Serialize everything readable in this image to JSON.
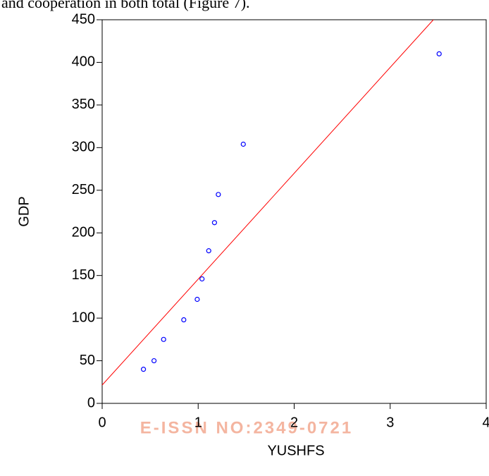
{
  "context_text": "and cooperation in both total (Figure 7).",
  "watermark": "E-ISSN NO:2349-0721",
  "chart_data": {
    "type": "scatter",
    "x_label": "YUSHFS",
    "y_label": "GDP",
    "xlim": [
      0,
      4
    ],
    "ylim": [
      0,
      450
    ],
    "xticks": [
      0,
      1,
      2,
      3,
      4
    ],
    "yticks": [
      0,
      50,
      100,
      150,
      200,
      250,
      300,
      350,
      400,
      450
    ],
    "grid": false,
    "series": [
      {
        "type": "scatter",
        "color": "#0000ff",
        "x": [
          0.43,
          0.54,
          0.64,
          0.85,
          0.99,
          1.04,
          1.11,
          1.17,
          1.21,
          1.47,
          3.51
        ],
        "values": [
          40,
          50,
          75,
          98,
          122,
          146,
          179,
          212,
          245,
          304,
          410
        ]
      },
      {
        "type": "line",
        "color": "#ff0000",
        "x": [
          0,
          3.45
        ],
        "values": [
          21.5,
          450
        ]
      }
    ]
  }
}
